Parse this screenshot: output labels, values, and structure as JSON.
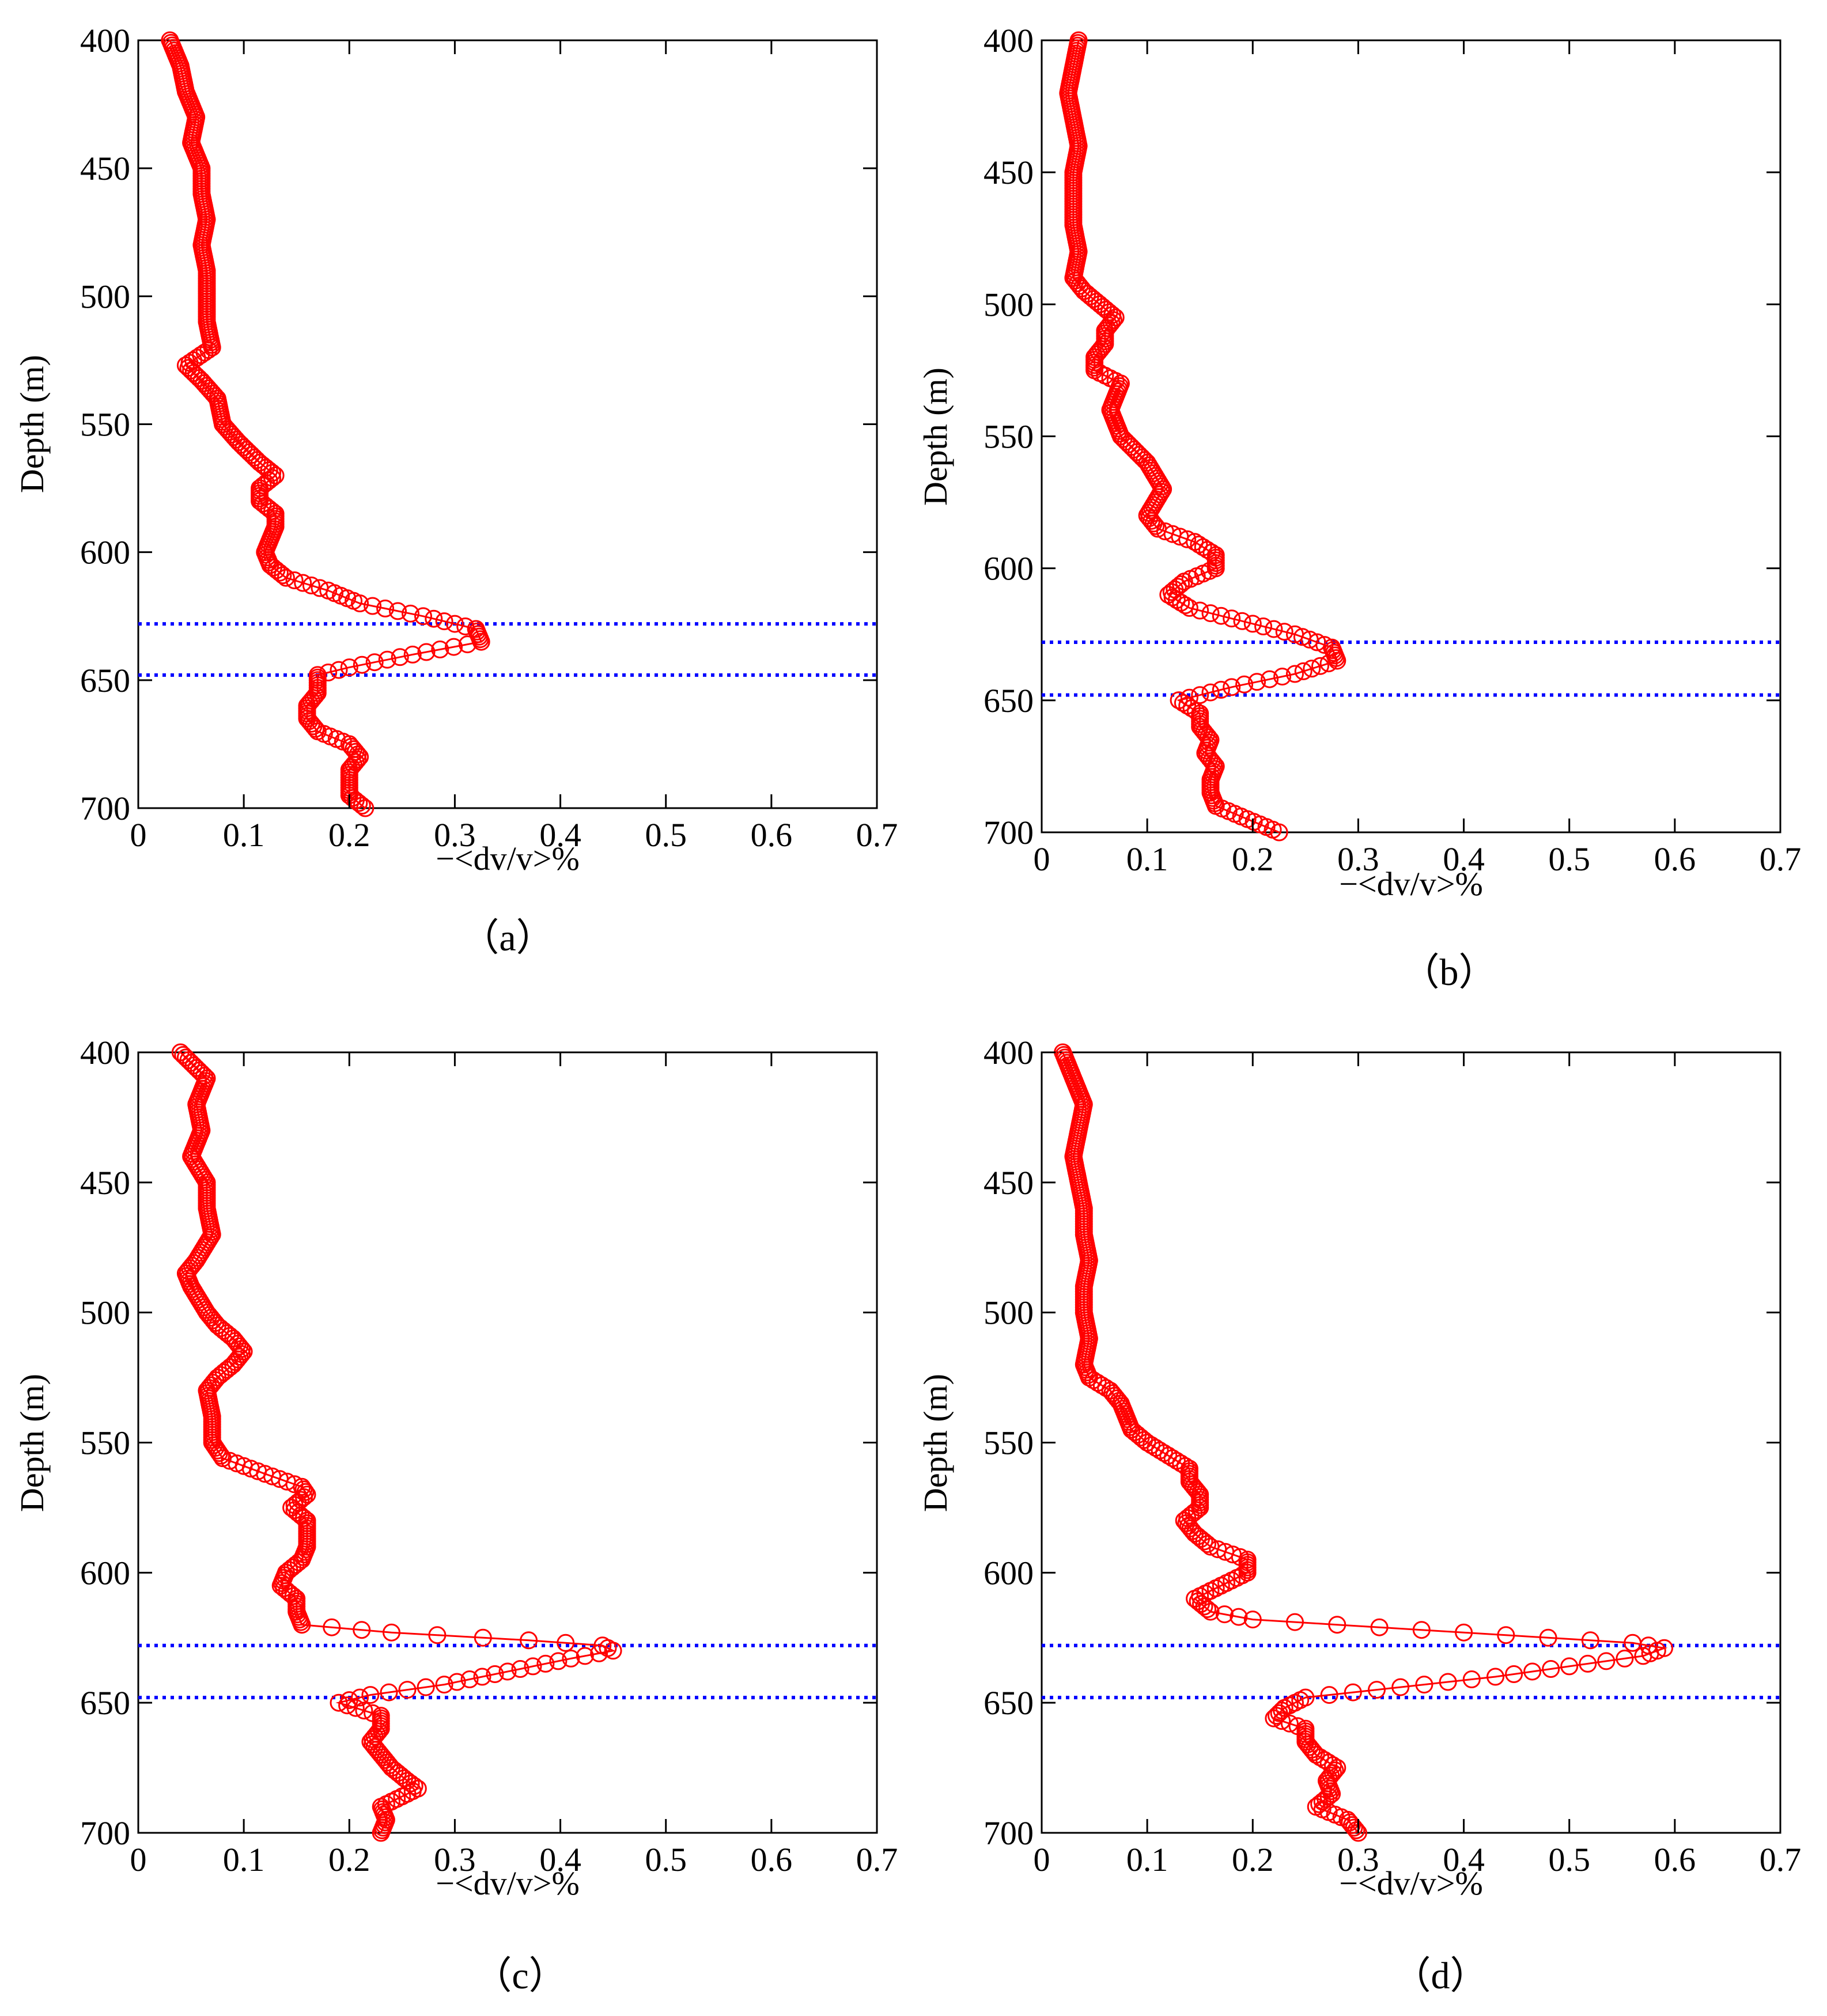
{
  "chart_data": [
    {
      "type": "line",
      "panel_label": "（a）",
      "xlabel": "−<dv/v>%",
      "ylabel": "Depth (m)",
      "xlim": [
        0,
        0.7
      ],
      "ylim": [
        400,
        700
      ],
      "y_inverted": true,
      "x_ticks": [
        "0",
        "0.1",
        "0.2",
        "0.3",
        "0.4",
        "0.5",
        "0.6",
        "0.7"
      ],
      "y_ticks": [
        "400",
        "450",
        "500",
        "550",
        "600",
        "650",
        "700"
      ],
      "grid": false,
      "marker": "circle-open",
      "line_color": "#ff0000",
      "reference_lines": {
        "depths": [
          628,
          648
        ],
        "color": "#0000ff",
        "style": "dotted"
      },
      "series": [
        {
          "profile": [
            [
              400,
              0.03
            ],
            [
              410,
              0.04
            ],
            [
              420,
              0.045
            ],
            [
              430,
              0.055
            ],
            [
              440,
              0.05
            ],
            [
              450,
              0.06
            ],
            [
              460,
              0.06
            ],
            [
              470,
              0.065
            ],
            [
              480,
              0.06
            ],
            [
              490,
              0.065
            ],
            [
              500,
              0.065
            ],
            [
              510,
              0.065
            ],
            [
              520,
              0.07
            ],
            [
              527,
              0.045
            ],
            [
              533,
              0.06
            ],
            [
              540,
              0.075
            ],
            [
              550,
              0.08
            ],
            [
              557,
              0.095
            ],
            [
              565,
              0.115
            ],
            [
              570,
              0.13
            ],
            [
              575,
              0.115
            ],
            [
              580,
              0.115
            ],
            [
              585,
              0.13
            ],
            [
              590,
              0.13
            ],
            [
              595,
              0.125
            ],
            [
              600,
              0.12
            ],
            [
              605,
              0.125
            ],
            [
              610,
              0.14
            ],
            [
              615,
              0.18
            ],
            [
              620,
              0.21
            ],
            [
              625,
              0.27
            ],
            [
              630,
              0.32
            ],
            [
              635,
              0.325
            ],
            [
              640,
              0.26
            ],
            [
              645,
              0.2
            ],
            [
              648,
              0.17
            ],
            [
              655,
              0.17
            ],
            [
              660,
              0.16
            ],
            [
              665,
              0.16
            ],
            [
              670,
              0.17
            ],
            [
              675,
              0.2
            ],
            [
              680,
              0.21
            ],
            [
              685,
              0.2
            ],
            [
              690,
              0.2
            ],
            [
              695,
              0.2
            ],
            [
              700,
              0.215
            ]
          ]
        }
      ]
    },
    {
      "type": "line",
      "panel_label": "（b）",
      "xlabel": "−<dv/v>%",
      "ylabel": "Depth (m)",
      "xlim": [
        0,
        0.7
      ],
      "ylim": [
        400,
        700
      ],
      "y_inverted": true,
      "x_ticks": [
        "0",
        "0.1",
        "0.2",
        "0.3",
        "0.4",
        "0.5",
        "0.6",
        "0.7"
      ],
      "y_ticks": [
        "400",
        "450",
        "500",
        "550",
        "600",
        "650",
        "700"
      ],
      "grid": false,
      "marker": "circle-open",
      "line_color": "#ff0000",
      "reference_lines": {
        "depths": [
          628,
          648
        ],
        "color": "#0000ff",
        "style": "dotted"
      },
      "series": [
        {
          "profile": [
            [
              400,
              0.035
            ],
            [
              410,
              0.03
            ],
            [
              420,
              0.025
            ],
            [
              430,
              0.03
            ],
            [
              440,
              0.035
            ],
            [
              450,
              0.03
            ],
            [
              460,
              0.03
            ],
            [
              470,
              0.03
            ],
            [
              480,
              0.035
            ],
            [
              490,
              0.03
            ],
            [
              495,
              0.04
            ],
            [
              500,
              0.055
            ],
            [
              505,
              0.07
            ],
            [
              510,
              0.06
            ],
            [
              515,
              0.06
            ],
            [
              520,
              0.05
            ],
            [
              525,
              0.05
            ],
            [
              530,
              0.075
            ],
            [
              540,
              0.065
            ],
            [
              550,
              0.075
            ],
            [
              560,
              0.1
            ],
            [
              570,
              0.115
            ],
            [
              580,
              0.1
            ],
            [
              585,
              0.11
            ],
            [
              590,
              0.145
            ],
            [
              595,
              0.165
            ],
            [
              600,
              0.165
            ],
            [
              605,
              0.135
            ],
            [
              610,
              0.12
            ],
            [
              615,
              0.14
            ],
            [
              620,
              0.19
            ],
            [
              625,
              0.24
            ],
            [
              630,
              0.275
            ],
            [
              635,
              0.28
            ],
            [
              640,
              0.24
            ],
            [
              645,
              0.18
            ],
            [
              650,
              0.13
            ],
            [
              655,
              0.15
            ],
            [
              660,
              0.15
            ],
            [
              665,
              0.16
            ],
            [
              670,
              0.155
            ],
            [
              675,
              0.165
            ],
            [
              680,
              0.16
            ],
            [
              685,
              0.16
            ],
            [
              690,
              0.165
            ],
            [
              695,
              0.195
            ],
            [
              700,
              0.225
            ]
          ]
        }
      ]
    },
    {
      "type": "line",
      "panel_label": "（c）",
      "xlabel": "−<dv/v>%",
      "ylabel": "Depth (m)",
      "xlim": [
        0,
        0.7
      ],
      "ylim": [
        400,
        700
      ],
      "y_inverted": true,
      "x_ticks": [
        "0",
        "0.1",
        "0.2",
        "0.3",
        "0.4",
        "0.5",
        "0.6",
        "0.7"
      ],
      "y_ticks": [
        "400",
        "450",
        "500",
        "550",
        "600",
        "650",
        "700"
      ],
      "grid": false,
      "marker": "circle-open",
      "line_color": "#ff0000",
      "reference_lines": {
        "depths": [
          628,
          648
        ],
        "color": "#0000ff",
        "style": "dotted"
      },
      "series": [
        {
          "profile": [
            [
              400,
              0.04
            ],
            [
              410,
              0.065
            ],
            [
              420,
              0.055
            ],
            [
              430,
              0.06
            ],
            [
              440,
              0.05
            ],
            [
              450,
              0.065
            ],
            [
              460,
              0.065
            ],
            [
              470,
              0.07
            ],
            [
              480,
              0.055
            ],
            [
              485,
              0.045
            ],
            [
              490,
              0.05
            ],
            [
              500,
              0.065
            ],
            [
              505,
              0.075
            ],
            [
              510,
              0.09
            ],
            [
              515,
              0.1
            ],
            [
              520,
              0.09
            ],
            [
              525,
              0.075
            ],
            [
              530,
              0.065
            ],
            [
              540,
              0.07
            ],
            [
              550,
              0.07
            ],
            [
              556,
              0.08
            ],
            [
              562,
              0.12
            ],
            [
              567,
              0.155
            ],
            [
              570,
              0.16
            ],
            [
              575,
              0.145
            ],
            [
              580,
              0.16
            ],
            [
              585,
              0.16
            ],
            [
              590,
              0.16
            ],
            [
              595,
              0.155
            ],
            [
              600,
              0.14
            ],
            [
              605,
              0.135
            ],
            [
              610,
              0.15
            ],
            [
              615,
              0.15
            ],
            [
              620,
              0.155
            ],
            [
              623,
              0.24
            ],
            [
              626,
              0.37
            ],
            [
              628,
              0.44
            ],
            [
              630,
              0.45
            ],
            [
              633,
              0.41
            ],
            [
              638,
              0.35
            ],
            [
              643,
              0.29
            ],
            [
              647,
              0.22
            ],
            [
              650,
              0.19
            ],
            [
              655,
              0.23
            ],
            [
              660,
              0.23
            ],
            [
              665,
              0.22
            ],
            [
              670,
              0.23
            ],
            [
              675,
              0.24
            ],
            [
              680,
              0.255
            ],
            [
              683,
              0.265
            ],
            [
              690,
              0.23
            ],
            [
              695,
              0.235
            ],
            [
              700,
              0.23
            ]
          ]
        }
      ]
    },
    {
      "type": "line",
      "panel_label": "（d）",
      "xlabel": "−<dv/v>%",
      "ylabel": "Depth (m)",
      "xlim": [
        0,
        0.7
      ],
      "ylim": [
        400,
        700
      ],
      "y_inverted": true,
      "x_ticks": [
        "0",
        "0.1",
        "0.2",
        "0.3",
        "0.4",
        "0.5",
        "0.6",
        "0.7"
      ],
      "y_ticks": [
        "400",
        "450",
        "500",
        "550",
        "600",
        "650",
        "700"
      ],
      "grid": false,
      "marker": "circle-open",
      "line_color": "#ff0000",
      "reference_lines": {
        "depths": [
          628,
          648
        ],
        "color": "#0000ff",
        "style": "dotted"
      },
      "series": [
        {
          "profile": [
            [
              400,
              0.02
            ],
            [
              410,
              0.03
            ],
            [
              420,
              0.04
            ],
            [
              430,
              0.035
            ],
            [
              440,
              0.03
            ],
            [
              450,
              0.035
            ],
            [
              460,
              0.04
            ],
            [
              470,
              0.04
            ],
            [
              480,
              0.045
            ],
            [
              490,
              0.04
            ],
            [
              500,
              0.04
            ],
            [
              510,
              0.045
            ],
            [
              520,
              0.04
            ],
            [
              525,
              0.045
            ],
            [
              530,
              0.065
            ],
            [
              535,
              0.075
            ],
            [
              540,
              0.08
            ],
            [
              545,
              0.085
            ],
            [
              550,
              0.1
            ],
            [
              555,
              0.12
            ],
            [
              560,
              0.14
            ],
            [
              565,
              0.14
            ],
            [
              570,
              0.15
            ],
            [
              575,
              0.15
            ],
            [
              580,
              0.135
            ],
            [
              585,
              0.145
            ],
            [
              590,
              0.16
            ],
            [
              595,
              0.195
            ],
            [
              600,
              0.195
            ],
            [
              605,
              0.17
            ],
            [
              610,
              0.145
            ],
            [
              615,
              0.16
            ],
            [
              618,
              0.2
            ],
            [
              621,
              0.32
            ],
            [
              624,
              0.44
            ],
            [
              627,
              0.56
            ],
            [
              629,
              0.59
            ],
            [
              632,
              0.57
            ],
            [
              636,
              0.5
            ],
            [
              640,
              0.43
            ],
            [
              644,
              0.34
            ],
            [
              648,
              0.25
            ],
            [
              652,
              0.23
            ],
            [
              656,
              0.22
            ],
            [
              660,
              0.25
            ],
            [
              665,
              0.25
            ],
            [
              670,
              0.26
            ],
            [
              675,
              0.28
            ],
            [
              680,
              0.27
            ],
            [
              685,
              0.275
            ],
            [
              690,
              0.26
            ],
            [
              695,
              0.29
            ],
            [
              700,
              0.3
            ]
          ]
        }
      ]
    }
  ]
}
